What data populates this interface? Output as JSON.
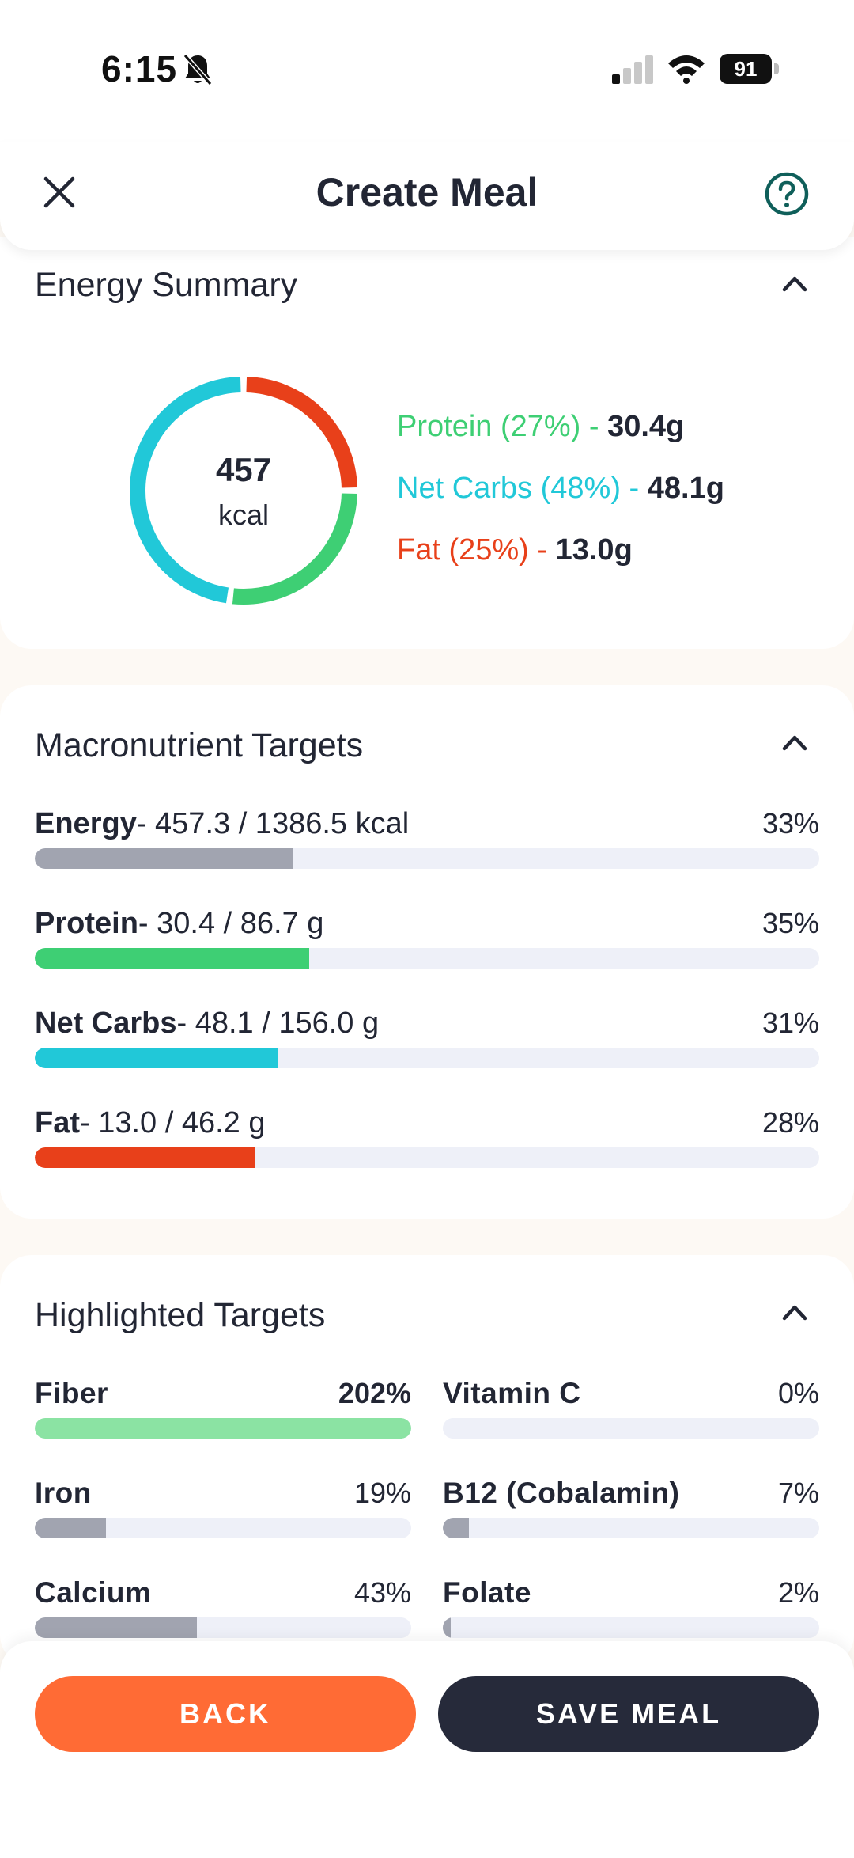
{
  "status_bar": {
    "time": "6:15",
    "battery": "91"
  },
  "header": {
    "title": "Create Meal"
  },
  "energy_summary": {
    "title": "Energy Summary",
    "total_value": "457",
    "total_unit": "kcal",
    "macros": [
      {
        "label": "Protein (27%) - ",
        "amount": "30.4g",
        "percent": 27,
        "color": "#3ecf74"
      },
      {
        "label": "Net Carbs (48%) - ",
        "amount": "48.1g",
        "percent": 48,
        "color": "#21c8d8"
      },
      {
        "label": "Fat (25%) - ",
        "amount": "13.0g",
        "percent": 25,
        "color": "#e8401a"
      }
    ]
  },
  "macro_targets": {
    "title": "Macronutrient Targets",
    "rows": [
      {
        "name": "Energy",
        "detail": "- 457.3 / 1386.5 kcal",
        "percent_label": "33%",
        "progress": 0.33,
        "color": "#a1a4b0"
      },
      {
        "name": "Protein",
        "detail": "- 30.4 / 86.7 g",
        "percent_label": "35%",
        "progress": 0.35,
        "color": "#3ecf74"
      },
      {
        "name": "Net Carbs",
        "detail": "- 48.1 / 156.0 g",
        "percent_label": "31%",
        "progress": 0.31,
        "color": "#21c8d8"
      },
      {
        "name": "Fat",
        "detail": "- 13.0 / 46.2 g",
        "percent_label": "28%",
        "progress": 0.28,
        "color": "#e8401a"
      }
    ]
  },
  "highlighted_targets": {
    "title": "Highlighted Targets",
    "items": [
      {
        "name": "Fiber",
        "percent_label": "202%",
        "progress": 1.0,
        "color": "#8be3a3"
      },
      {
        "name": "Vitamin C",
        "percent_label": "0%",
        "progress": 0.0,
        "color": "#a1a4b0"
      },
      {
        "name": "Iron",
        "percent_label": "19%",
        "progress": 0.19,
        "color": "#a1a4b0"
      },
      {
        "name": "B12 (Cobalamin)",
        "percent_label": "7%",
        "progress": 0.07,
        "color": "#a1a4b0"
      },
      {
        "name": "Calcium",
        "percent_label": "43%",
        "progress": 0.43,
        "color": "#a1a4b0"
      },
      {
        "name": "Folate",
        "percent_label": "2%",
        "progress": 0.02,
        "color": "#a1a4b0"
      }
    ]
  },
  "footer": {
    "back_label": "BACK",
    "save_label": "SAVE MEAL"
  },
  "icons": {
    "close": "close-icon",
    "help": "help-circle-icon",
    "collapse": "chevron-up-icon",
    "silent": "bell-slash-icon",
    "signal": "signal-icon",
    "wifi": "wifi-icon",
    "battery": "battery-icon"
  }
}
